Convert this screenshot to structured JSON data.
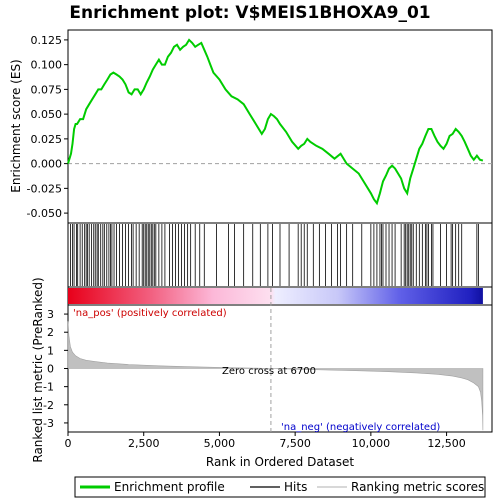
{
  "chart_data": {
    "type": "line",
    "title": "Enrichment plot: V$MEIS1BHOXA9_01",
    "panels": {
      "enrichment": {
        "ylabel": "Enrichment score (ES)",
        "ylim": [
          -0.06,
          0.135
        ],
        "yticks": [
          -0.05,
          -0.025,
          0.0,
          0.025,
          0.05,
          0.075,
          0.1,
          0.125
        ],
        "ytick_labels": [
          "-0.050",
          "-0.025",
          "0.000",
          "0.025",
          "0.050",
          "0.075",
          "0.100",
          "0.125"
        ],
        "series": [
          {
            "name": "Enrichment profile",
            "color": "#00cc00",
            "x": [
              0,
              100,
              150,
              200,
              250,
              300,
              400,
              500,
              600,
              700,
              800,
              900,
              1000,
              1100,
              1200,
              1300,
              1400,
              1500,
              1600,
              1700,
              1800,
              1900,
              2000,
              2100,
              2200,
              2300,
              2400,
              2500,
              2600,
              2700,
              2800,
              2900,
              3000,
              3100,
              3200,
              3300,
              3400,
              3500,
              3600,
              3700,
              3800,
              3900,
              4000,
              4100,
              4200,
              4300,
              4400,
              4500,
              4600,
              4700,
              4800,
              5000,
              5200,
              5400,
              5600,
              5800,
              6000,
              6200,
              6400,
              6500,
              6600,
              6700,
              6800,
              6900,
              7000,
              7200,
              7400,
              7600,
              7700,
              7800,
              7900,
              8000,
              8200,
              8400,
              8600,
              8800,
              9000,
              9200,
              9400,
              9600,
              9800,
              10000,
              10100,
              10200,
              10300,
              10400,
              10500,
              10600,
              10700,
              10800,
              11000,
              11100,
              11200,
              11300,
              11400,
              11500,
              11600,
              11700,
              11800,
              11900,
              12000,
              12100,
              12200,
              12300,
              12400,
              12500,
              12600,
              12700,
              12800,
              12900,
              13000,
              13100,
              13200,
              13300,
              13400,
              13500,
              13600,
              13700
            ],
            "y": [
              0.0,
              0.01,
              0.02,
              0.035,
              0.04,
              0.04,
              0.045,
              0.045,
              0.055,
              0.06,
              0.065,
              0.07,
              0.075,
              0.075,
              0.08,
              0.085,
              0.09,
              0.092,
              0.09,
              0.088,
              0.085,
              0.08,
              0.072,
              0.07,
              0.075,
              0.075,
              0.07,
              0.075,
              0.082,
              0.088,
              0.095,
              0.1,
              0.105,
              0.1,
              0.1,
              0.108,
              0.112,
              0.118,
              0.12,
              0.115,
              0.118,
              0.12,
              0.125,
              0.122,
              0.118,
              0.12,
              0.122,
              0.115,
              0.108,
              0.1,
              0.092,
              0.085,
              0.075,
              0.068,
              0.065,
              0.06,
              0.05,
              0.04,
              0.03,
              0.035,
              0.045,
              0.05,
              0.048,
              0.045,
              0.04,
              0.032,
              0.022,
              0.015,
              0.018,
              0.02,
              0.025,
              0.022,
              0.018,
              0.015,
              0.01,
              0.005,
              0.01,
              0.0,
              -0.005,
              -0.01,
              -0.02,
              -0.03,
              -0.036,
              -0.04,
              -0.03,
              -0.018,
              -0.012,
              -0.005,
              -0.002,
              -0.005,
              -0.015,
              -0.025,
              -0.03,
              -0.015,
              -0.005,
              0.005,
              0.015,
              0.02,
              0.028,
              0.035,
              0.035,
              0.028,
              0.022,
              0.018,
              0.015,
              0.02,
              0.028,
              0.03,
              0.035,
              0.032,
              0.028,
              0.022,
              0.015,
              0.008,
              0.004,
              0.008,
              0.004,
              0.003
            ]
          }
        ]
      },
      "hits": {
        "legend_label": "Hits",
        "positions": [
          80,
          150,
          200,
          280,
          320,
          400,
          470,
          550,
          600,
          640,
          700,
          780,
          850,
          900,
          960,
          1000,
          1080,
          1150,
          1200,
          1280,
          1350,
          1400,
          1450,
          1520,
          1600,
          1700,
          1800,
          1900,
          2000,
          2100,
          2150,
          2250,
          2350,
          2450,
          2500,
          2550,
          2600,
          2650,
          2700,
          2750,
          2800,
          2850,
          2900,
          3000,
          3100,
          3200,
          3350,
          3450,
          3550,
          3650,
          3750,
          3850,
          3950,
          4050,
          4200,
          4350,
          4500,
          4900,
          5300,
          5500,
          5800,
          6100,
          6350,
          6600,
          6750,
          7000,
          7300,
          7600,
          7700,
          7800,
          7900,
          8100,
          8300,
          8500,
          8700,
          8900,
          9000,
          9200,
          9400,
          9700,
          10000,
          10100,
          10200,
          10300,
          10350,
          10400,
          10500,
          10600,
          10700,
          10800,
          11000,
          11100,
          11150,
          11200,
          11250,
          11300,
          11350,
          11400,
          11500,
          11600,
          11700,
          11800,
          11850,
          11900,
          12000,
          12050,
          12300,
          12500,
          12650,
          12700,
          12800,
          12900,
          13000,
          13500,
          13550
        ]
      },
      "ranking": {
        "ylabel": "Ranked list metric (PreRanked)",
        "ylim": [
          -3.5,
          3.5
        ],
        "yticks": [
          -3,
          -2,
          -1,
          0,
          1,
          2,
          3
        ],
        "ytick_labels": [
          "-3",
          "-2",
          "-1",
          "0",
          "1",
          "2",
          "3"
        ],
        "legend_label": "Ranking metric scores",
        "x": [
          0,
          30,
          80,
          150,
          250,
          400,
          600,
          900,
          1300,
          2000,
          3000,
          4000,
          5000,
          6000,
          6700,
          7500,
          8500,
          9500,
          10500,
          11500,
          12200,
          12700,
          13000,
          13200,
          13400,
          13550,
          13620,
          13660,
          13690,
          13700
        ],
        "y": [
          2.6,
          1.8,
          1.2,
          0.9,
          0.7,
          0.55,
          0.45,
          0.38,
          0.3,
          0.22,
          0.15,
          0.1,
          0.06,
          0.03,
          0.0,
          -0.04,
          -0.08,
          -0.12,
          -0.17,
          -0.24,
          -0.32,
          -0.42,
          -0.52,
          -0.62,
          -0.8,
          -1.0,
          -1.3,
          -1.8,
          -2.6,
          -3.4
        ],
        "annotations": {
          "pos": "'na_pos' (positively correlated)",
          "neg": "'na_neg' (negatively correlated)",
          "zero_cross": "Zero cross at 6700"
        },
        "zero_cross_x": 6700
      }
    },
    "xlabel": "Rank in Ordered Dataset",
    "xlim": [
      0,
      14000
    ],
    "xticks": [
      0,
      2500,
      5000,
      7500,
      10000,
      12500
    ],
    "xtick_labels": [
      "0",
      "2,500",
      "5,000",
      "7,500",
      "10,000",
      "12,500"
    ],
    "n_genes": 13700,
    "legend": [
      "Enrichment profile",
      "Hits",
      "Ranking metric scores"
    ],
    "colors": {
      "profile": "#00cc00",
      "hits": "#000000",
      "ranking_fill": "#c0c0c0",
      "pos_text": "#cc0000",
      "neg_text": "#0000cc",
      "zero_line": "#a0a0a0"
    }
  }
}
